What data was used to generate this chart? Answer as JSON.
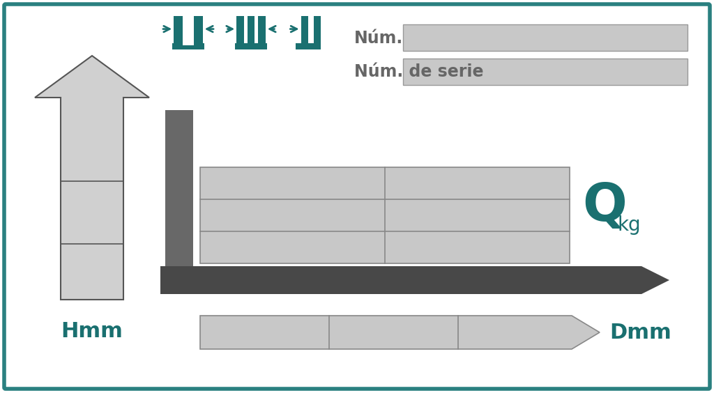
{
  "bg_color": "#ffffff",
  "border_color": "#2a8080",
  "teal_color": "#1a7070",
  "light_gray": "#c8c8c8",
  "dark_fork": "#4a4a4a",
  "mast_gray": "#666666",
  "label_H": "Hmm",
  "label_Q": "Q",
  "label_Q_sub": "kg",
  "label_D": "Dmm",
  "label_num": "Núm.",
  "label_serie": "Núm. de serie",
  "text_gray": "#666666"
}
